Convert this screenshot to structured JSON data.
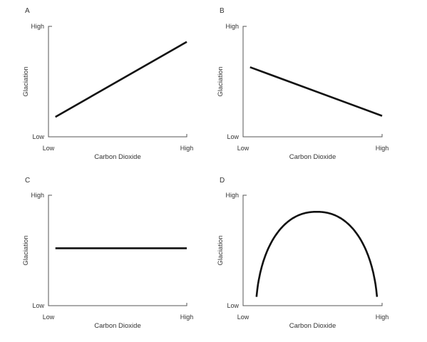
{
  "chart_data": [
    {
      "panel": "A",
      "type": "line",
      "xlabel": "Carbon Dioxide",
      "ylabel": "Glaciation",
      "x_ticks": [
        "Low",
        "High"
      ],
      "y_ticks": [
        "Low",
        "High"
      ],
      "xlim": [
        0,
        1
      ],
      "ylim": [
        0,
        1
      ],
      "grid": false,
      "series": [
        {
          "x": [
            0.05,
            1.0
          ],
          "y": [
            0.18,
            0.86
          ]
        }
      ]
    },
    {
      "panel": "B",
      "type": "line",
      "xlabel": "Carbon Dioxide",
      "ylabel": "Glaciation",
      "x_ticks": [
        "Low",
        "High"
      ],
      "y_ticks": [
        "Low",
        "High"
      ],
      "xlim": [
        0,
        1
      ],
      "ylim": [
        0,
        1
      ],
      "grid": false,
      "series": [
        {
          "x": [
            0.05,
            1.0
          ],
          "y": [
            0.63,
            0.19
          ]
        }
      ]
    },
    {
      "panel": "C",
      "type": "line",
      "xlabel": "Carbon Dioxide",
      "ylabel": "Glaciation",
      "x_ticks": [
        "Low",
        "High"
      ],
      "y_ticks": [
        "Low",
        "High"
      ],
      "xlim": [
        0,
        1
      ],
      "ylim": [
        0,
        1
      ],
      "grid": false,
      "series": [
        {
          "x": [
            0.05,
            1.0
          ],
          "y": [
            0.52,
            0.52
          ]
        }
      ]
    },
    {
      "panel": "D",
      "type": "line",
      "shape": "arch",
      "xlabel": "Carbon Dioxide",
      "ylabel": "Glaciation",
      "x_ticks": [
        "Low",
        "High"
      ],
      "y_ticks": [
        "Low",
        "High"
      ],
      "xlim": [
        0,
        1
      ],
      "ylim": [
        0,
        1
      ],
      "grid": false,
      "series": [
        {
          "x": [
            0.09,
            0.53,
            0.97
          ],
          "y": [
            0.08,
            0.85,
            0.08
          ]
        }
      ]
    }
  ]
}
